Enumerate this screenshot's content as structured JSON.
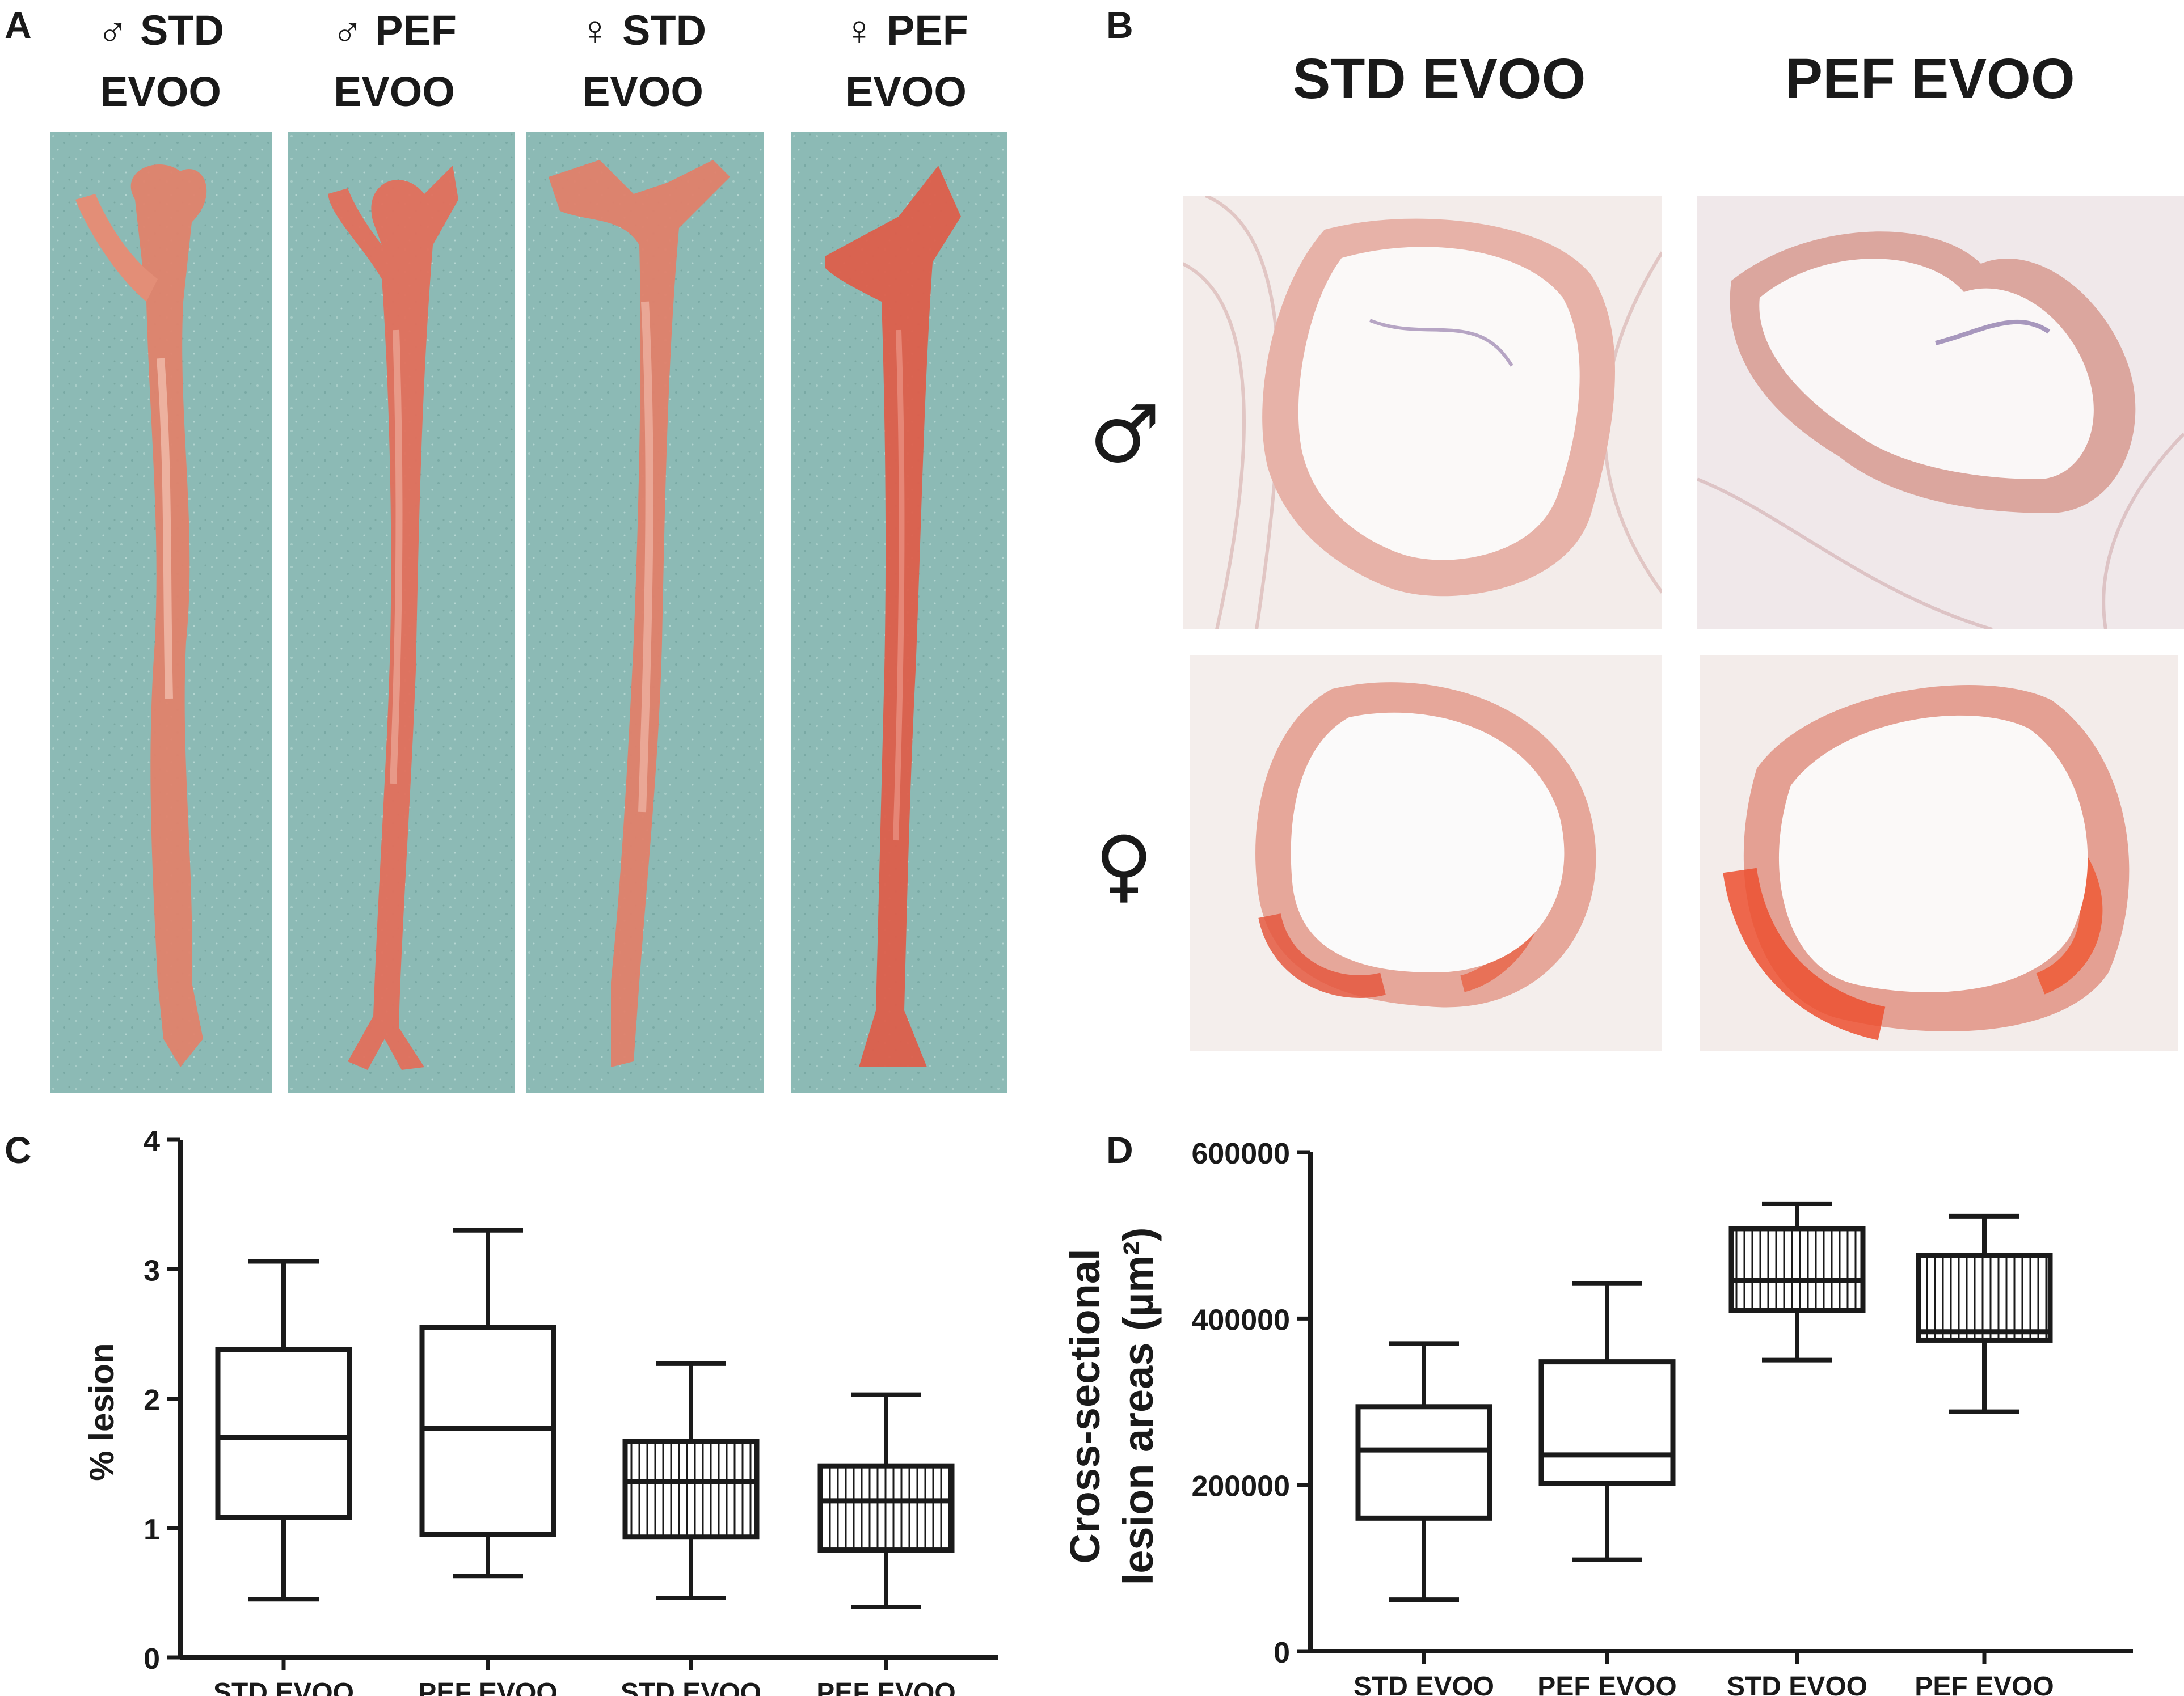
{
  "panels": {
    "a": "A",
    "b": "B",
    "c": "C",
    "d": "D"
  },
  "panel_a": {
    "columns": [
      {
        "symbol": "♂",
        "line1": "STD",
        "line2": "EVOO"
      },
      {
        "symbol": "♂",
        "line1": "PEF",
        "line2": "EVOO"
      },
      {
        "symbol": "♀",
        "line1": "STD",
        "line2": "EVOO"
      },
      {
        "symbol": "♀",
        "line1": "PEF",
        "line2": "EVOO"
      }
    ]
  },
  "panel_b": {
    "col1": "STD EVOO",
    "col2": "PEF EVOO",
    "row1": "♂",
    "row2": "♀"
  },
  "chart_data": [
    {
      "type": "box",
      "panel": "C",
      "ylabel": "% lesion",
      "ylim": [
        0,
        4
      ],
      "yticks": [
        "0",
        "1",
        "2",
        "3",
        "4"
      ],
      "categories": [
        "STD EVOO",
        "PEF EVOO",
        "STD EVOO",
        "PEF EVOO"
      ],
      "boxes": [
        {
          "min": 0.45,
          "q1": 1.08,
          "median": 1.7,
          "q3": 2.38,
          "max": 3.06,
          "hatched": false
        },
        {
          "min": 0.63,
          "q1": 0.95,
          "median": 1.77,
          "q3": 2.55,
          "max": 3.3,
          "hatched": false
        },
        {
          "min": 0.46,
          "q1": 0.93,
          "median": 1.36,
          "q3": 1.67,
          "max": 2.27,
          "hatched": true
        },
        {
          "min": 0.39,
          "q1": 0.83,
          "median": 1.21,
          "q3": 1.48,
          "max": 2.03,
          "hatched": true
        }
      ]
    },
    {
      "type": "box",
      "panel": "D",
      "ylabel_line1": "Cross-sectional",
      "ylabel_line2": "lesion areas (µm²)",
      "ylim": [
        0,
        600000
      ],
      "yticks": [
        "0",
        "200000",
        "400000",
        "600000"
      ],
      "categories": [
        "STD EVOO",
        "PEF EVOO",
        "STD EVOO",
        "PEF EVOO"
      ],
      "boxes": [
        {
          "min": 62000,
          "q1": 160000,
          "median": 242000,
          "q3": 294000,
          "max": 370000,
          "hatched": false
        },
        {
          "min": 110000,
          "q1": 202000,
          "median": 236000,
          "q3": 348000,
          "max": 442000,
          "hatched": false
        },
        {
          "min": 350000,
          "q1": 410000,
          "median": 446000,
          "q3": 508000,
          "max": 538000,
          "hatched": true
        },
        {
          "min": 288000,
          "q1": 374000,
          "median": 384000,
          "q3": 476000,
          "max": 523000,
          "hatched": true
        }
      ]
    }
  ]
}
